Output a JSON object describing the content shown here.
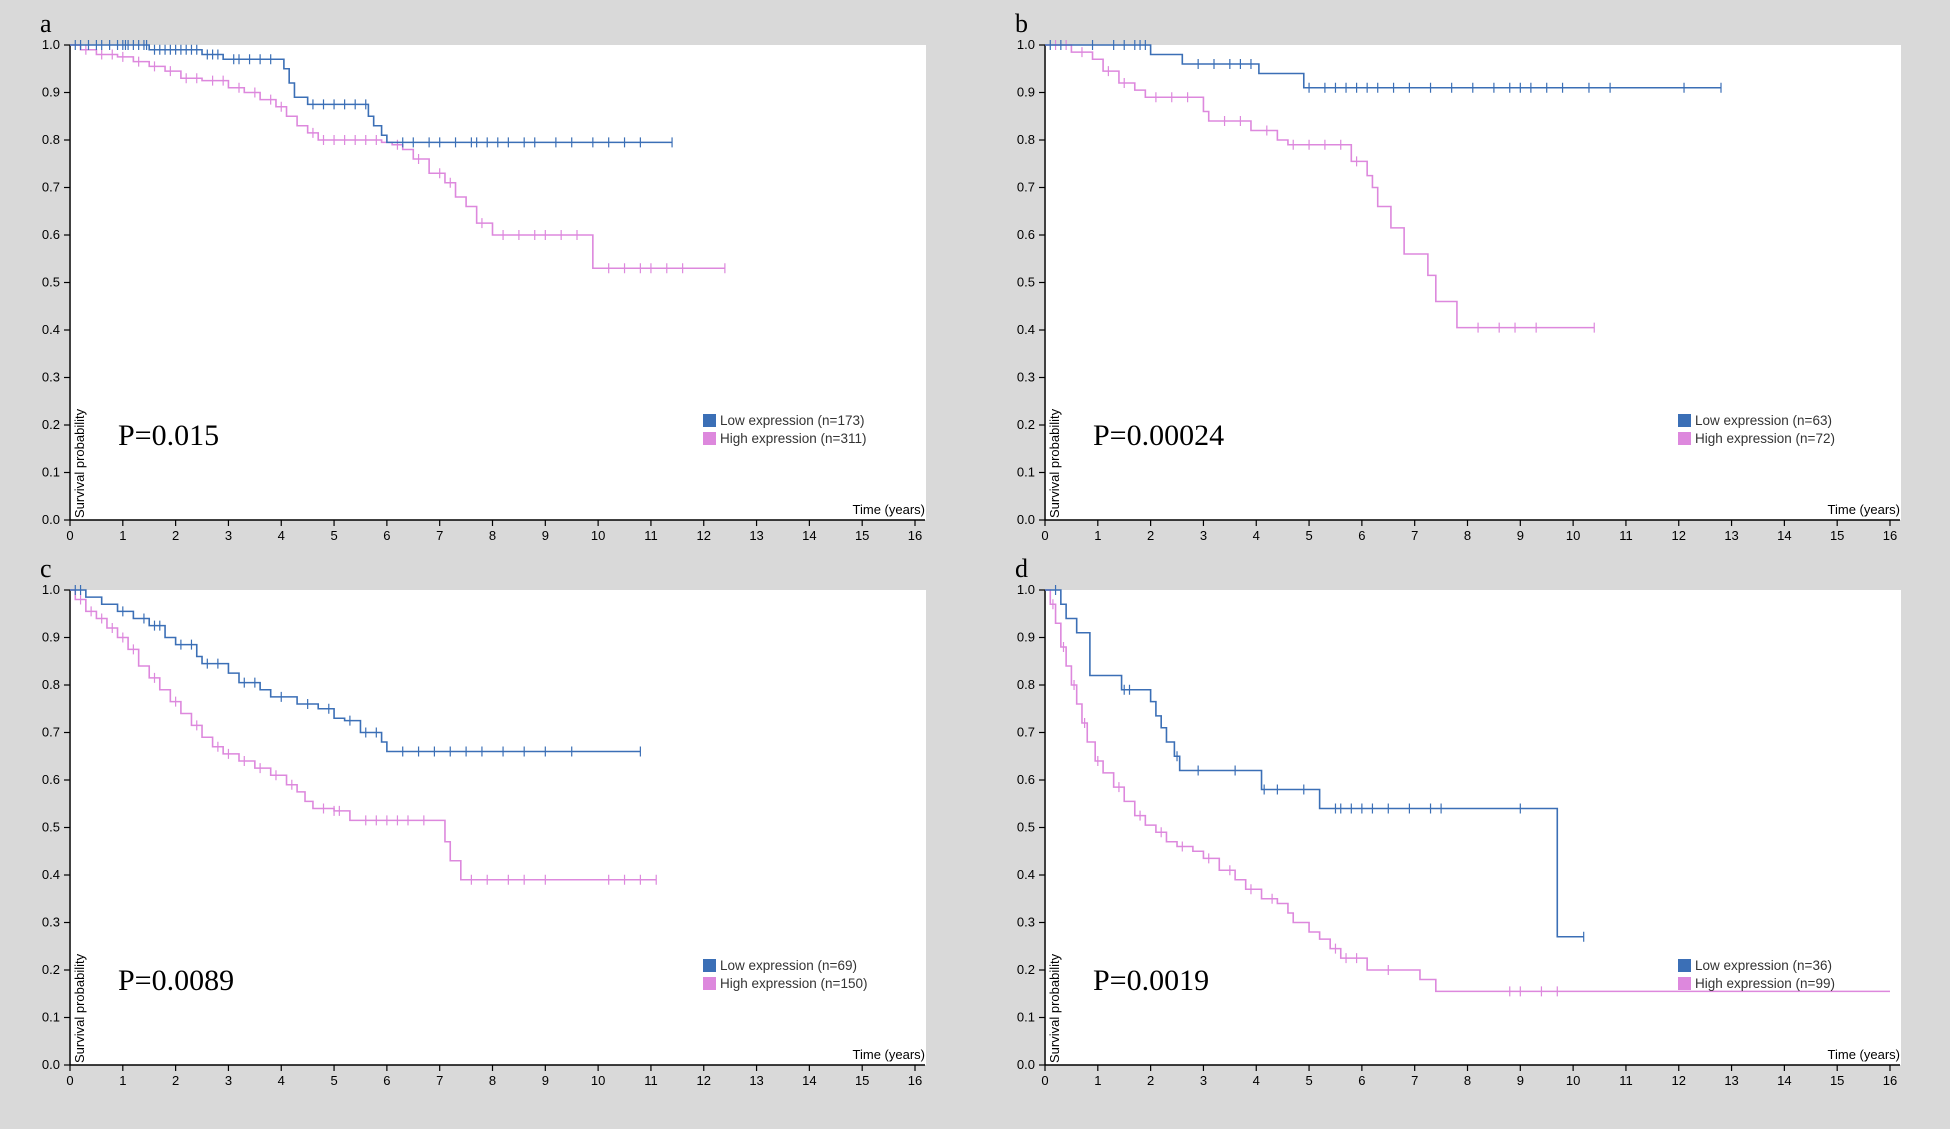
{
  "colors": {
    "low": "#3b6fb6",
    "high": "#dd88dd",
    "background": "#d9d9d9",
    "plot": "#ffffff"
  },
  "axis": {
    "xlabel": "Time (years)",
    "ylabel": "Survival probability",
    "xticks": [
      "0",
      "1",
      "2",
      "3",
      "4",
      "5",
      "6",
      "7",
      "8",
      "9",
      "10",
      "11",
      "12",
      "13",
      "14",
      "15",
      "16"
    ],
    "yticks": [
      "0.0",
      "0.1",
      "0.2",
      "0.3",
      "0.4",
      "0.5",
      "0.6",
      "0.7",
      "0.8",
      "0.9",
      "1.0"
    ]
  },
  "chart_data": [
    {
      "type": "line",
      "panel": "a",
      "pvalue": "P=0.015",
      "xlim": [
        0,
        16
      ],
      "ylim": [
        0,
        1
      ],
      "legend_position": "bottom-right",
      "series": [
        {
          "name": "Low expression",
          "label": "Low expression (n=173)",
          "color_key": "low",
          "steps": [
            [
              0,
              1.0
            ],
            [
              1.5,
              0.99
            ],
            [
              2.5,
              0.98
            ],
            [
              2.9,
              0.97
            ],
            [
              4.05,
              0.95
            ],
            [
              4.15,
              0.92
            ],
            [
              4.25,
              0.89
            ],
            [
              4.5,
              0.875
            ],
            [
              5.65,
              0.85
            ],
            [
              5.75,
              0.83
            ],
            [
              5.9,
              0.81
            ],
            [
              6.0,
              0.795
            ],
            [
              11.4,
              0.795
            ]
          ],
          "censors": [
            0.1,
            0.2,
            0.35,
            0.5,
            0.6,
            0.75,
            0.9,
            1.0,
            1.05,
            1.1,
            1.2,
            1.3,
            1.4,
            1.45,
            1.6,
            1.7,
            1.8,
            1.9,
            2.0,
            2.1,
            2.2,
            2.3,
            2.4,
            2.6,
            2.7,
            2.8,
            3.1,
            3.2,
            3.4,
            3.6,
            3.8,
            4.6,
            4.8,
            5.0,
            5.2,
            5.4,
            5.6,
            6.3,
            6.5,
            6.8,
            7.0,
            7.3,
            7.6,
            7.7,
            7.9,
            8.1,
            8.3,
            8.6,
            8.8,
            9.2,
            9.5,
            9.9,
            10.2,
            10.5,
            10.8,
            11.4
          ]
        },
        {
          "name": "High expression",
          "label": "High expression (n=311)",
          "color_key": "high",
          "steps": [
            [
              0,
              1.0
            ],
            [
              0.2,
              0.99
            ],
            [
              0.5,
              0.98
            ],
            [
              0.9,
              0.975
            ],
            [
              1.2,
              0.965
            ],
            [
              1.5,
              0.955
            ],
            [
              1.8,
              0.945
            ],
            [
              2.1,
              0.93
            ],
            [
              2.5,
              0.925
            ],
            [
              3.0,
              0.91
            ],
            [
              3.3,
              0.9
            ],
            [
              3.6,
              0.885
            ],
            [
              3.9,
              0.87
            ],
            [
              4.1,
              0.85
            ],
            [
              4.3,
              0.83
            ],
            [
              4.5,
              0.815
            ],
            [
              4.7,
              0.8
            ],
            [
              5.9,
              0.795
            ],
            [
              6.1,
              0.79
            ],
            [
              6.3,
              0.78
            ],
            [
              6.5,
              0.76
            ],
            [
              6.8,
              0.73
            ],
            [
              7.1,
              0.71
            ],
            [
              7.3,
              0.68
            ],
            [
              7.5,
              0.66
            ],
            [
              7.7,
              0.625
            ],
            [
              8.0,
              0.6
            ],
            [
              9.9,
              0.53
            ],
            [
              12.4,
              0.53
            ]
          ],
          "censors": [
            0.3,
            0.6,
            0.8,
            1.0,
            1.3,
            1.6,
            1.9,
            2.2,
            2.4,
            2.7,
            2.9,
            3.2,
            3.5,
            3.8,
            4.0,
            4.6,
            4.8,
            5.0,
            5.2,
            5.4,
            5.6,
            5.8,
            6.2,
            6.6,
            7.0,
            7.2,
            7.8,
            8.2,
            8.5,
            8.8,
            9.0,
            9.3,
            9.6,
            10.2,
            10.5,
            10.8,
            11.0,
            11.3,
            11.6,
            12.4
          ]
        }
      ]
    },
    {
      "type": "line",
      "panel": "b",
      "pvalue": "P=0.00024",
      "xlim": [
        0,
        16
      ],
      "ylim": [
        0,
        1
      ],
      "legend_position": "bottom-right",
      "series": [
        {
          "name": "Low expression",
          "label": "Low expression (n=63)",
          "color_key": "low",
          "steps": [
            [
              0,
              1.0
            ],
            [
              2.0,
              0.98
            ],
            [
              2.6,
              0.96
            ],
            [
              4.05,
              0.94
            ],
            [
              4.9,
              0.91
            ],
            [
              12.8,
              0.91
            ]
          ],
          "censors": [
            0.1,
            0.3,
            0.9,
            1.3,
            1.5,
            1.7,
            1.8,
            1.9,
            2.9,
            3.2,
            3.5,
            3.7,
            3.9,
            5.0,
            5.3,
            5.5,
            5.7,
            5.9,
            6.1,
            6.3,
            6.6,
            6.9,
            7.3,
            7.7,
            8.1,
            8.5,
            8.8,
            9.0,
            9.2,
            9.5,
            9.8,
            10.3,
            10.7,
            12.1,
            12.8
          ]
        },
        {
          "name": "High expression",
          "label": "High expression (n=72)",
          "color_key": "high",
          "steps": [
            [
              0,
              1.0
            ],
            [
              0.5,
              0.985
            ],
            [
              0.9,
              0.97
            ],
            [
              1.1,
              0.945
            ],
            [
              1.4,
              0.92
            ],
            [
              1.7,
              0.905
            ],
            [
              1.9,
              0.89
            ],
            [
              3.0,
              0.86
            ],
            [
              3.1,
              0.84
            ],
            [
              3.9,
              0.82
            ],
            [
              4.4,
              0.8
            ],
            [
              4.6,
              0.79
            ],
            [
              5.8,
              0.755
            ],
            [
              6.1,
              0.725
            ],
            [
              6.2,
              0.7
            ],
            [
              6.3,
              0.66
            ],
            [
              6.55,
              0.615
            ],
            [
              6.8,
              0.56
            ],
            [
              7.25,
              0.515
            ],
            [
              7.4,
              0.46
            ],
            [
              7.8,
              0.405
            ],
            [
              10.4,
              0.405
            ]
          ],
          "censors": [
            0.2,
            0.4,
            0.7,
            1.2,
            1.5,
            2.1,
            2.4,
            2.7,
            3.4,
            3.7,
            4.2,
            4.7,
            5.0,
            5.3,
            5.6,
            5.9,
            8.2,
            8.6,
            8.9,
            9.3,
            10.4
          ]
        }
      ]
    },
    {
      "type": "line",
      "panel": "c",
      "pvalue": "P=0.0089",
      "xlim": [
        0,
        16
      ],
      "ylim": [
        0,
        1
      ],
      "legend_position": "bottom-right",
      "series": [
        {
          "name": "Low expression",
          "label": "Low expression (n=69)",
          "color_key": "low",
          "steps": [
            [
              0,
              1.0
            ],
            [
              0.3,
              0.985
            ],
            [
              0.6,
              0.97
            ],
            [
              0.9,
              0.955
            ],
            [
              1.2,
              0.94
            ],
            [
              1.5,
              0.925
            ],
            [
              1.8,
              0.9
            ],
            [
              2.0,
              0.885
            ],
            [
              2.4,
              0.86
            ],
            [
              2.5,
              0.845
            ],
            [
              3.0,
              0.825
            ],
            [
              3.2,
              0.805
            ],
            [
              3.6,
              0.79
            ],
            [
              3.8,
              0.775
            ],
            [
              4.3,
              0.76
            ],
            [
              4.7,
              0.75
            ],
            [
              5.0,
              0.73
            ],
            [
              5.2,
              0.725
            ],
            [
              5.5,
              0.7
            ],
            [
              5.9,
              0.68
            ],
            [
              6.0,
              0.66
            ],
            [
              10.8,
              0.66
            ]
          ],
          "censors": [
            0.1,
            0.2,
            1.0,
            1.4,
            1.6,
            1.7,
            2.1,
            2.3,
            2.6,
            2.8,
            3.3,
            3.5,
            4.0,
            4.5,
            4.9,
            5.3,
            5.6,
            5.8,
            6.3,
            6.6,
            6.9,
            7.2,
            7.5,
            7.8,
            8.2,
            8.6,
            9.0,
            9.5,
            10.8
          ]
        },
        {
          "name": "High expression",
          "label": "High expression (n=150)",
          "color_key": "high",
          "steps": [
            [
              0,
              1.0
            ],
            [
              0.1,
              0.98
            ],
            [
              0.3,
              0.955
            ],
            [
              0.5,
              0.94
            ],
            [
              0.7,
              0.92
            ],
            [
              0.9,
              0.9
            ],
            [
              1.1,
              0.875
            ],
            [
              1.3,
              0.84
            ],
            [
              1.5,
              0.815
            ],
            [
              1.7,
              0.79
            ],
            [
              1.9,
              0.765
            ],
            [
              2.1,
              0.74
            ],
            [
              2.3,
              0.715
            ],
            [
              2.5,
              0.69
            ],
            [
              2.7,
              0.67
            ],
            [
              2.9,
              0.655
            ],
            [
              3.2,
              0.64
            ],
            [
              3.5,
              0.625
            ],
            [
              3.8,
              0.61
            ],
            [
              4.1,
              0.59
            ],
            [
              4.3,
              0.575
            ],
            [
              4.45,
              0.555
            ],
            [
              4.6,
              0.54
            ],
            [
              5.0,
              0.535
            ],
            [
              5.3,
              0.515
            ],
            [
              7.0,
              0.515
            ],
            [
              7.1,
              0.47
            ],
            [
              7.2,
              0.43
            ],
            [
              7.4,
              0.39
            ],
            [
              11.1,
              0.39
            ]
          ],
          "censors": [
            0.2,
            0.4,
            0.6,
            0.8,
            1.0,
            1.2,
            1.6,
            2.0,
            2.4,
            2.8,
            3.0,
            3.3,
            3.6,
            3.9,
            4.2,
            4.8,
            5.0,
            5.1,
            5.6,
            5.8,
            6.0,
            6.2,
            6.4,
            6.7,
            7.6,
            7.9,
            8.3,
            8.6,
            9.0,
            10.2,
            10.5,
            10.8,
            11.1
          ]
        }
      ]
    },
    {
      "type": "line",
      "panel": "d",
      "pvalue": "P=0.0019",
      "xlim": [
        0,
        16
      ],
      "ylim": [
        0,
        1
      ],
      "legend_position": "bottom-right",
      "series": [
        {
          "name": "Low expression",
          "label": "Low expression (n=36)",
          "color_key": "low",
          "steps": [
            [
              0,
              1.0
            ],
            [
              0.3,
              0.97
            ],
            [
              0.4,
              0.94
            ],
            [
              0.6,
              0.91
            ],
            [
              0.85,
              0.82
            ],
            [
              1.45,
              0.79
            ],
            [
              2.0,
              0.765
            ],
            [
              2.1,
              0.735
            ],
            [
              2.2,
              0.71
            ],
            [
              2.3,
              0.68
            ],
            [
              2.45,
              0.65
            ],
            [
              2.55,
              0.62
            ],
            [
              4.1,
              0.58
            ],
            [
              5.2,
              0.54
            ],
            [
              9.7,
              0.27
            ],
            [
              10.2,
              0.27
            ]
          ],
          "censors": [
            0.2,
            1.5,
            1.6,
            2.5,
            2.9,
            3.6,
            4.15,
            4.4,
            4.9,
            5.5,
            5.6,
            5.8,
            6.0,
            6.2,
            6.5,
            6.9,
            7.3,
            7.5,
            9.0,
            10.2
          ]
        },
        {
          "name": "High expression",
          "label": "High expression (n=99)",
          "color_key": "high",
          "steps": [
            [
              0,
              1.0
            ],
            [
              0.1,
              0.97
            ],
            [
              0.2,
              0.93
            ],
            [
              0.3,
              0.88
            ],
            [
              0.4,
              0.84
            ],
            [
              0.5,
              0.8
            ],
            [
              0.6,
              0.76
            ],
            [
              0.7,
              0.72
            ],
            [
              0.8,
              0.68
            ],
            [
              0.95,
              0.64
            ],
            [
              1.1,
              0.615
            ],
            [
              1.3,
              0.585
            ],
            [
              1.5,
              0.555
            ],
            [
              1.7,
              0.525
            ],
            [
              1.9,
              0.505
            ],
            [
              2.1,
              0.49
            ],
            [
              2.3,
              0.47
            ],
            [
              2.5,
              0.46
            ],
            [
              2.8,
              0.45
            ],
            [
              3.0,
              0.435
            ],
            [
              3.3,
              0.41
            ],
            [
              3.6,
              0.39
            ],
            [
              3.8,
              0.37
            ],
            [
              4.1,
              0.35
            ],
            [
              4.4,
              0.34
            ],
            [
              4.6,
              0.32
            ],
            [
              4.7,
              0.3
            ],
            [
              5.0,
              0.28
            ],
            [
              5.2,
              0.265
            ],
            [
              5.4,
              0.245
            ],
            [
              5.6,
              0.225
            ],
            [
              6.1,
              0.2
            ],
            [
              7.1,
              0.18
            ],
            [
              7.4,
              0.155
            ],
            [
              16,
              0.155
            ]
          ],
          "censors": [
            0.15,
            0.35,
            0.55,
            0.75,
            1.0,
            1.4,
            1.8,
            2.2,
            2.6,
            3.1,
            3.5,
            3.9,
            4.3,
            5.5,
            5.7,
            5.9,
            6.5,
            8.8,
            9.0,
            9.4,
            9.7
          ]
        }
      ]
    }
  ]
}
